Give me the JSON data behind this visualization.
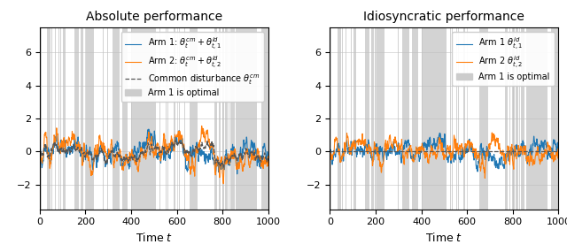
{
  "seed": 123,
  "T": 1000,
  "title_left": "Absolute performance",
  "title_right": "Idiosyncratic performance",
  "xlabel": "Time $t$",
  "color_arm1": "#1f77b4",
  "color_arm2": "#ff7f0e",
  "color_common": "#555555",
  "color_shading": "#cccccc",
  "ylim": [
    -3.5,
    7.5
  ],
  "yticks": [
    -2,
    0,
    2,
    4,
    6
  ],
  "xticks": [
    0,
    200,
    400,
    600,
    800,
    1000
  ],
  "legend_fontsize": 7.0,
  "title_fontsize": 10,
  "label_fontsize": 9,
  "tick_fontsize": 8,
  "common_sigma": 0.08,
  "common_phi": 0.97,
  "id_sigma": 0.18,
  "id_phi": 0.92
}
